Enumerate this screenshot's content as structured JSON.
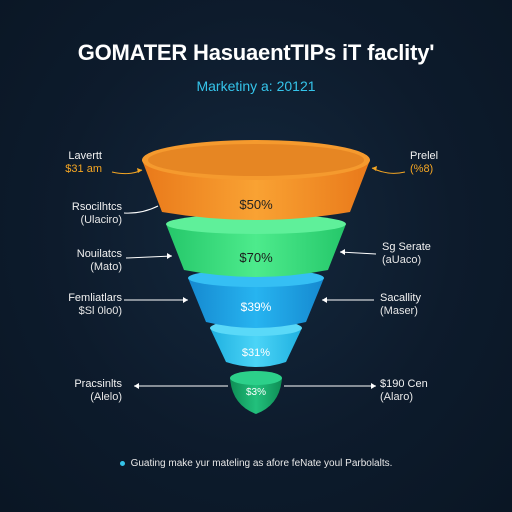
{
  "title": "GOMATER HasuaentTIPs iT faclity'",
  "subtitle": "Marketiny a: 20121",
  "stages": [
    {
      "value": "$50%",
      "color": "#f7931e"
    },
    {
      "value": "$70%",
      "color": "#35e07a"
    },
    {
      "value": "$39%",
      "color": "#1ba8e6"
    },
    {
      "value": "$31%",
      "color": "#2fc6ef"
    },
    {
      "value": "$3%",
      "color": "#17a96a"
    }
  ],
  "left_labels": [
    {
      "name": "Lavertt",
      "sub": "$31 am"
    },
    {
      "name": "Rsocilhtcs",
      "sub": "(Ulaciro)"
    },
    {
      "name": "Nouilatcs",
      "sub": "(Mato)"
    },
    {
      "name": "Femliatlars",
      "sub": "$Sl 0lo0)"
    },
    {
      "name": "Pracsinlts",
      "sub": "(Alelo)"
    }
  ],
  "right_labels": [
    {
      "name": "Prelel",
      "sub": "(%8)"
    },
    {
      "name": "Sg Serate",
      "sub": "(aUaco)"
    },
    {
      "name": "Sacallity",
      "sub": "(Maser)"
    },
    {
      "name": "$190 Cen",
      "sub": "(Alaro)"
    }
  ],
  "footer": "Guating make yur mateling as afore feNate youl Parbolalts.",
  "colors": {
    "accent": "#35c4ea",
    "highlight": "#f5a623"
  }
}
